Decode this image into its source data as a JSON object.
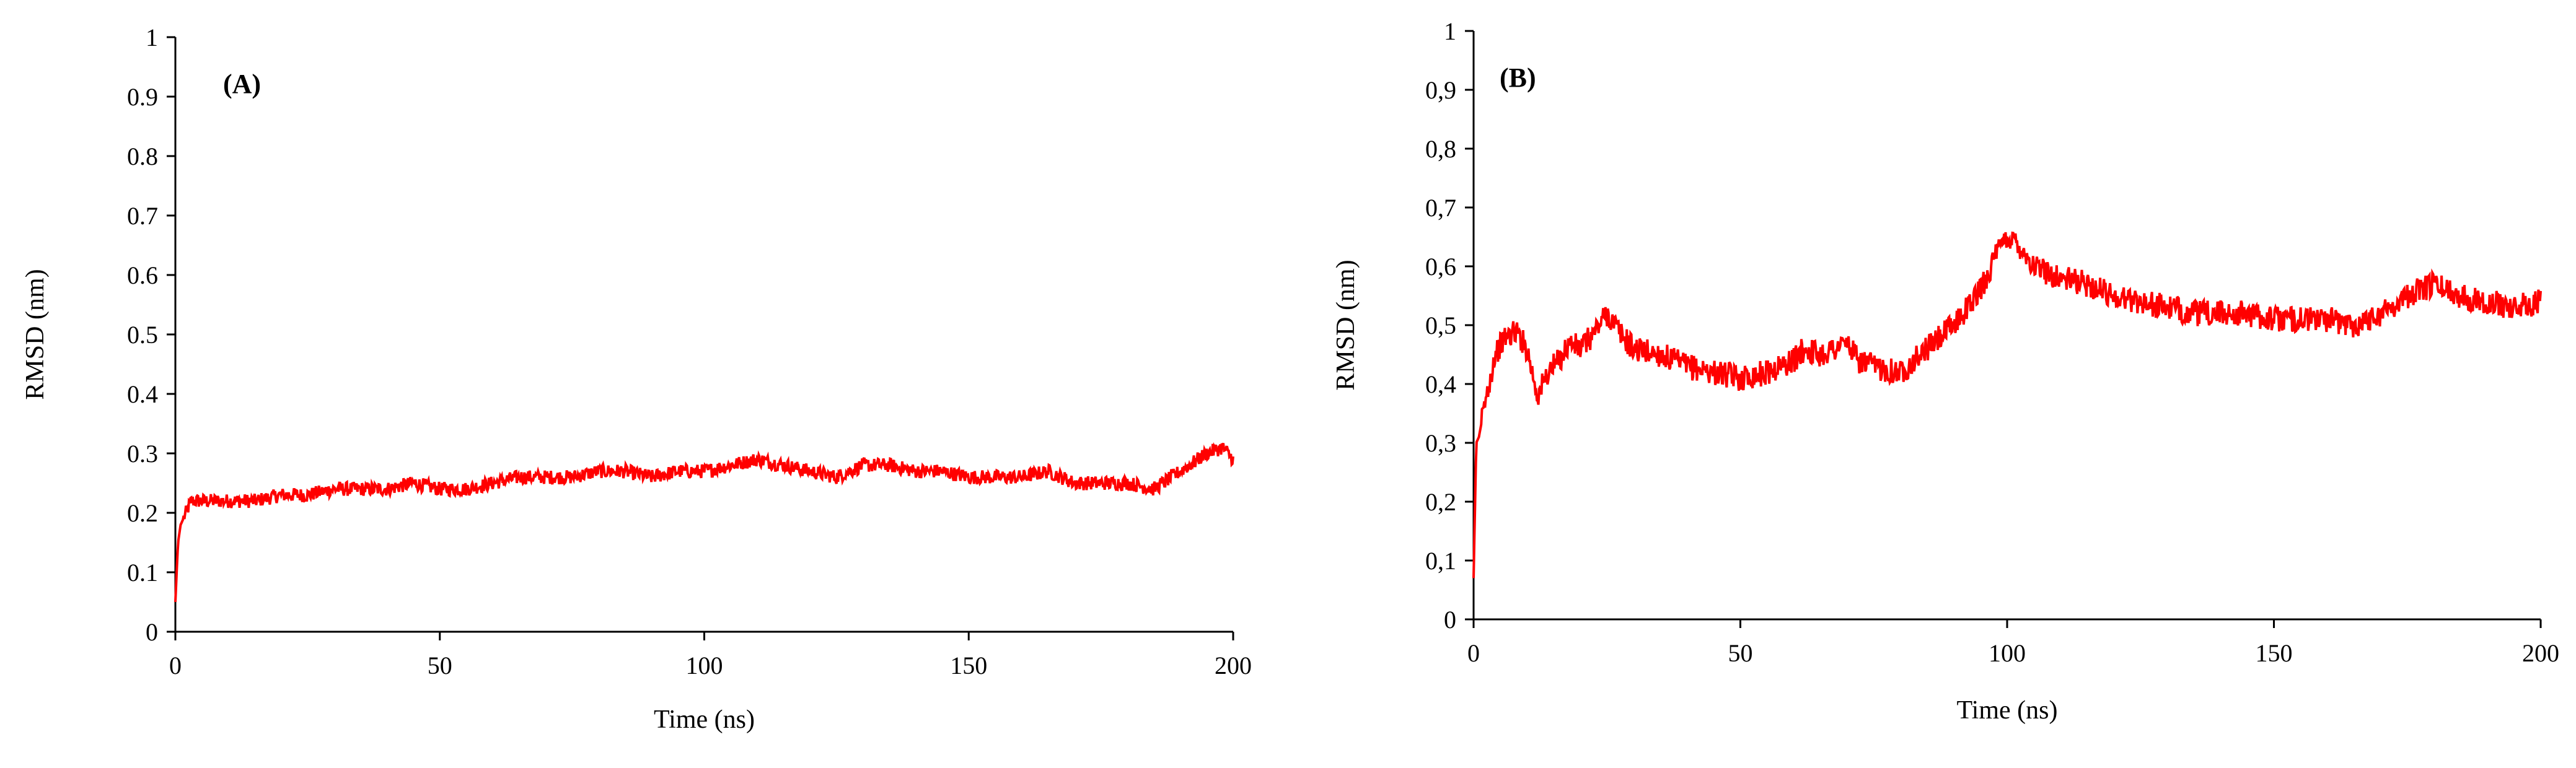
{
  "figure": {
    "panels": [
      "(A)",
      "(B)"
    ]
  },
  "chart_data": [
    {
      "type": "line",
      "panel_label": "(A)",
      "xlabel": "Time  (ns)",
      "ylabel": "RMSD  (nm)",
      "xlim": [
        0,
        200
      ],
      "ylim": [
        0,
        1
      ],
      "x_ticks": [
        "0",
        "50",
        "100",
        "150",
        "200"
      ],
      "y_ticks": [
        "0",
        "0.1",
        "0.2",
        "0.3",
        "0.4",
        "0.5",
        "0.6",
        "0.7",
        "0.8",
        "0.9",
        "1"
      ],
      "grid": false,
      "series_color": "#ff0000",
      "series": [
        {
          "x": [
            0,
            0.5,
            1,
            2,
            3,
            5,
            10,
            15,
            20,
            25,
            30,
            40,
            45,
            50,
            55,
            60,
            65,
            70,
            75,
            80,
            85,
            90,
            95,
            100,
            105,
            110,
            115,
            120,
            125,
            130,
            135,
            140,
            145,
            150,
            155,
            160,
            165,
            170,
            175,
            180,
            185,
            190,
            195,
            198,
            200
          ],
          "y": [
            0.05,
            0.15,
            0.18,
            0.2,
            0.22,
            0.22,
            0.22,
            0.22,
            0.23,
            0.23,
            0.24,
            0.24,
            0.25,
            0.24,
            0.24,
            0.25,
            0.26,
            0.26,
            0.26,
            0.27,
            0.27,
            0.26,
            0.27,
            0.27,
            0.28,
            0.29,
            0.28,
            0.27,
            0.26,
            0.28,
            0.28,
            0.27,
            0.27,
            0.26,
            0.26,
            0.26,
            0.27,
            0.25,
            0.25,
            0.25,
            0.24,
            0.27,
            0.3,
            0.31,
            0.29
          ]
        }
      ]
    },
    {
      "type": "line",
      "panel_label": "(B)",
      "xlabel": "Time  (ns)",
      "ylabel": "RMSD  (nm)",
      "xlim": [
        0,
        200
      ],
      "ylim": [
        0,
        1
      ],
      "x_ticks": [
        "0",
        "50",
        "100",
        "150",
        "200"
      ],
      "y_ticks": [
        "0",
        "0,1",
        "0,2",
        "0,3",
        "0,4",
        "0,5",
        "0,6",
        "0,7",
        "0,8",
        "0,9",
        "1"
      ],
      "grid": false,
      "series_color": "#ff0000",
      "series": [
        {
          "x": [
            0,
            0.5,
            1,
            2,
            4,
            6,
            8,
            10,
            12,
            14,
            16,
            18,
            20,
            22,
            25,
            28,
            30,
            35,
            40,
            45,
            50,
            55,
            60,
            62,
            65,
            70,
            72,
            75,
            80,
            85,
            90,
            95,
            98,
            100,
            102,
            105,
            110,
            115,
            120,
            125,
            130,
            135,
            140,
            145,
            150,
            155,
            160,
            165,
            170,
            175,
            180,
            185,
            190,
            195,
            200
          ],
          "y": [
            0.07,
            0.3,
            0.31,
            0.36,
            0.45,
            0.48,
            0.49,
            0.46,
            0.38,
            0.42,
            0.44,
            0.47,
            0.46,
            0.48,
            0.52,
            0.48,
            0.46,
            0.45,
            0.43,
            0.42,
            0.41,
            0.42,
            0.44,
            0.46,
            0.45,
            0.47,
            0.44,
            0.43,
            0.42,
            0.46,
            0.5,
            0.56,
            0.62,
            0.65,
            0.64,
            0.6,
            0.58,
            0.57,
            0.55,
            0.54,
            0.53,
            0.52,
            0.52,
            0.52,
            0.51,
            0.51,
            0.51,
            0.5,
            0.52,
            0.55,
            0.57,
            0.55,
            0.54,
            0.53,
            0.54
          ]
        }
      ]
    }
  ]
}
